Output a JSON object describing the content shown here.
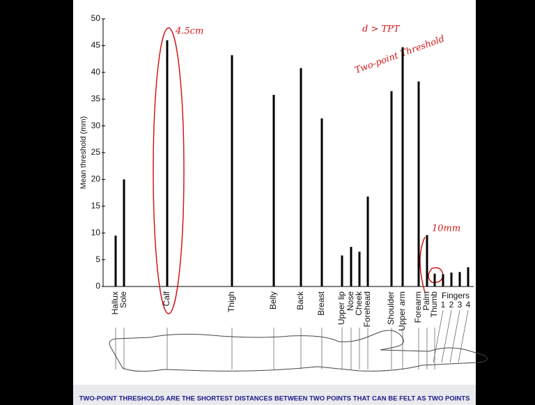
{
  "chart_data": {
    "type": "bar",
    "ylabel": "Mean threshold (mm)",
    "categories": [
      "Hallux",
      "Sole",
      "Calf",
      "Thigh",
      "Belly",
      "Back",
      "Breast",
      "Upper lip",
      "Nose",
      "Cheek",
      "Forehead",
      "Shoulder",
      "Upper arm",
      "Forearm",
      "Palm",
      "Thumb",
      "1",
      "2",
      "3",
      "4"
    ],
    "group_label": "Fingers",
    "values": [
      9.5,
      20,
      46,
      43.2,
      35.8,
      40.8,
      31.4,
      5.8,
      7.4,
      6.5,
      16.8,
      36.5,
      44.7,
      38.3,
      9.6,
      2.4,
      2.3,
      2.6,
      2.7,
      3.6
    ],
    "color": "#000000",
    "ylim": [
      0,
      50
    ],
    "yticks": [
      0,
      5,
      10,
      15,
      20,
      25,
      30,
      35,
      40,
      45,
      50
    ],
    "annotations": [
      "4.5cm",
      "d > TPT",
      "Two-point Threshold",
      "10mm"
    ],
    "caption": "TWO-POINT THRESHOLDS ARE THE SHORTEST DISTANCES BETWEEN TWO POINTS THAT CAN BE FELT AS TWO POINTS"
  }
}
